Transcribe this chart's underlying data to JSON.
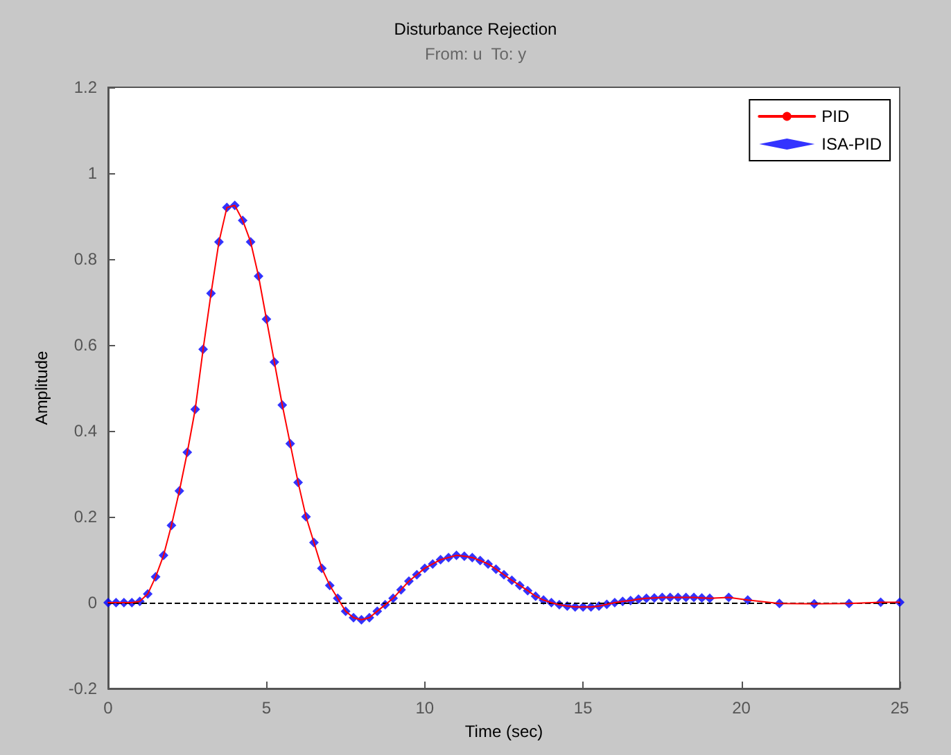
{
  "chart_data": {
    "type": "line",
    "title": "Disturbance Rejection",
    "subtitle": "From: u  To: y",
    "xlabel": "Time (sec)",
    "ylabel": "Amplitude",
    "x": [
      0,
      0.25,
      0.5,
      0.75,
      1,
      1.25,
      1.5,
      1.75,
      2,
      2.25,
      2.5,
      2.75,
      3,
      3.25,
      3.5,
      3.75,
      4,
      4.25,
      4.5,
      4.75,
      5,
      5.25,
      5.5,
      5.75,
      6,
      6.25,
      6.5,
      6.75,
      7,
      7.25,
      7.5,
      7.75,
      8,
      8.25,
      8.5,
      8.75,
      9,
      9.25,
      9.5,
      9.75,
      10,
      10.25,
      10.5,
      10.75,
      11,
      11.25,
      11.5,
      11.75,
      12,
      12.25,
      12.5,
      12.75,
      13,
      13.25,
      13.5,
      13.75,
      14,
      14.25,
      14.5,
      14.75,
      15,
      15.25,
      15.5,
      15.75,
      16,
      16.25,
      16.5,
      16.75,
      17,
      17.25,
      17.5,
      17.75,
      18,
      18.25,
      18.5,
      18.75,
      19,
      19.6,
      20.2,
      21.2,
      22.3,
      23.4,
      24.4,
      25
    ],
    "series": [
      {
        "name": "PID",
        "color": "#ff0000",
        "marker": "none",
        "values": [
          0,
          0,
          0,
          0,
          0.003,
          0.02,
          0.06,
          0.11,
          0.18,
          0.26,
          0.35,
          0.45,
          0.59,
          0.72,
          0.84,
          0.92,
          0.925,
          0.89,
          0.84,
          0.76,
          0.66,
          0.56,
          0.46,
          0.37,
          0.28,
          0.2,
          0.14,
          0.08,
          0.04,
          0.01,
          -0.02,
          -0.035,
          -0.04,
          -0.035,
          -0.02,
          -0.005,
          0.01,
          0.03,
          0.05,
          0.065,
          0.08,
          0.09,
          0.1,
          0.105,
          0.11,
          0.108,
          0.105,
          0.098,
          0.09,
          0.078,
          0.065,
          0.052,
          0.04,
          0.028,
          0.015,
          0.006,
          0,
          -0.005,
          -0.008,
          -0.01,
          -0.01,
          -0.01,
          -0.008,
          -0.004,
          0,
          0.003,
          0.005,
          0.008,
          0.01,
          0.011,
          0.012,
          0.012,
          0.012,
          0.012,
          0.012,
          0.011,
          0.01,
          0.012,
          0.006,
          -0.002,
          -0.003,
          -0.002,
          0.001,
          0.001
        ]
      },
      {
        "name": "ISA-PID",
        "type": "scatter",
        "color": "#0000ff",
        "marker": "diamond",
        "values": [
          0,
          0,
          0,
          0,
          0.003,
          0.02,
          0.06,
          0.11,
          0.18,
          0.26,
          0.35,
          0.45,
          0.59,
          0.72,
          0.84,
          0.92,
          0.925,
          0.89,
          0.84,
          0.76,
          0.66,
          0.56,
          0.46,
          0.37,
          0.28,
          0.2,
          0.14,
          0.08,
          0.04,
          0.01,
          -0.02,
          -0.035,
          -0.04,
          -0.035,
          -0.02,
          -0.005,
          0.01,
          0.03,
          0.05,
          0.065,
          0.08,
          0.09,
          0.1,
          0.105,
          0.11,
          0.108,
          0.105,
          0.098,
          0.09,
          0.078,
          0.065,
          0.052,
          0.04,
          0.028,
          0.015,
          0.006,
          0,
          -0.005,
          -0.008,
          -0.01,
          -0.01,
          -0.01,
          -0.008,
          -0.004,
          0,
          0.003,
          0.005,
          0.008,
          0.01,
          0.011,
          0.012,
          0.012,
          0.012,
          0.012,
          0.012,
          0.011,
          0.01,
          0.012,
          0.006,
          -0.002,
          -0.003,
          -0.002,
          0.001,
          0.001
        ]
      }
    ],
    "xlim": [
      0,
      25
    ],
    "xticks": [
      0,
      5,
      10,
      15,
      20,
      25
    ],
    "ylim": [
      -0.2,
      1.2
    ],
    "yticks": [
      -0.2,
      0,
      0.2,
      0.4,
      0.6,
      0.8,
      1,
      1.2
    ],
    "ref_lines": [
      {
        "axis": "y",
        "value": 0,
        "color": "#000000",
        "line_style": "dashed"
      }
    ],
    "grid": false,
    "legend": "top right"
  }
}
